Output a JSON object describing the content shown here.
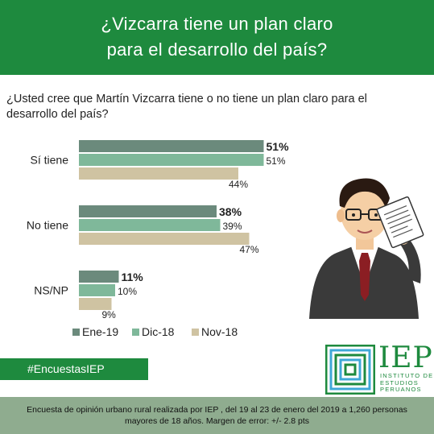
{
  "header": {
    "title_line1": "¿Vizcarra tiene un plan claro",
    "title_line2": "para el desarrollo del país?"
  },
  "question": "¿Usted cree que Martín Vizcarra tiene o no tiene un plan claro para el desarrollo del país?",
  "colors": {
    "header_green": "#1e8a3e",
    "series": [
      "#6b8a7c",
      "#7fb89a",
      "#cfc3a2"
    ],
    "footer": "#8fac8f"
  },
  "chart_data": {
    "type": "bar",
    "orientation": "horizontal",
    "categories": [
      "Sí tiene",
      "No tiene",
      "NS/NP"
    ],
    "series": [
      {
        "name": "Ene-19",
        "values": [
          51,
          38,
          11
        ],
        "labels": [
          "51%",
          "38%",
          "11%"
        ]
      },
      {
        "name": "Dic-18",
        "values": [
          51,
          39,
          10
        ],
        "labels": [
          "51%",
          "39%",
          "10%"
        ]
      },
      {
        "name": "Nov-18",
        "values": [
          44,
          47,
          9
        ],
        "labels": [
          "44%",
          "47%",
          "9%"
        ]
      }
    ],
    "legend_position": "bottom",
    "grid": false
  },
  "hashtag": "#EncuestasIEP",
  "footer": {
    "line1": "Encuesta de opinión urbano rural realizada por IEP , del 19 al 23 de enero del 2019 a 1,260 personas",
    "line2": "mayores de 18 años. Margen de error: +/- 2.8 pts"
  },
  "logo": {
    "big": "IEP",
    "line1": "INSTITUTO DE",
    "line2": "ESTUDIOS",
    "line3": "PERUANOS"
  },
  "icons": {
    "person": "businessman-illustration-icon",
    "document": "document-icon",
    "logo_mark": "iep-logo-icon"
  }
}
